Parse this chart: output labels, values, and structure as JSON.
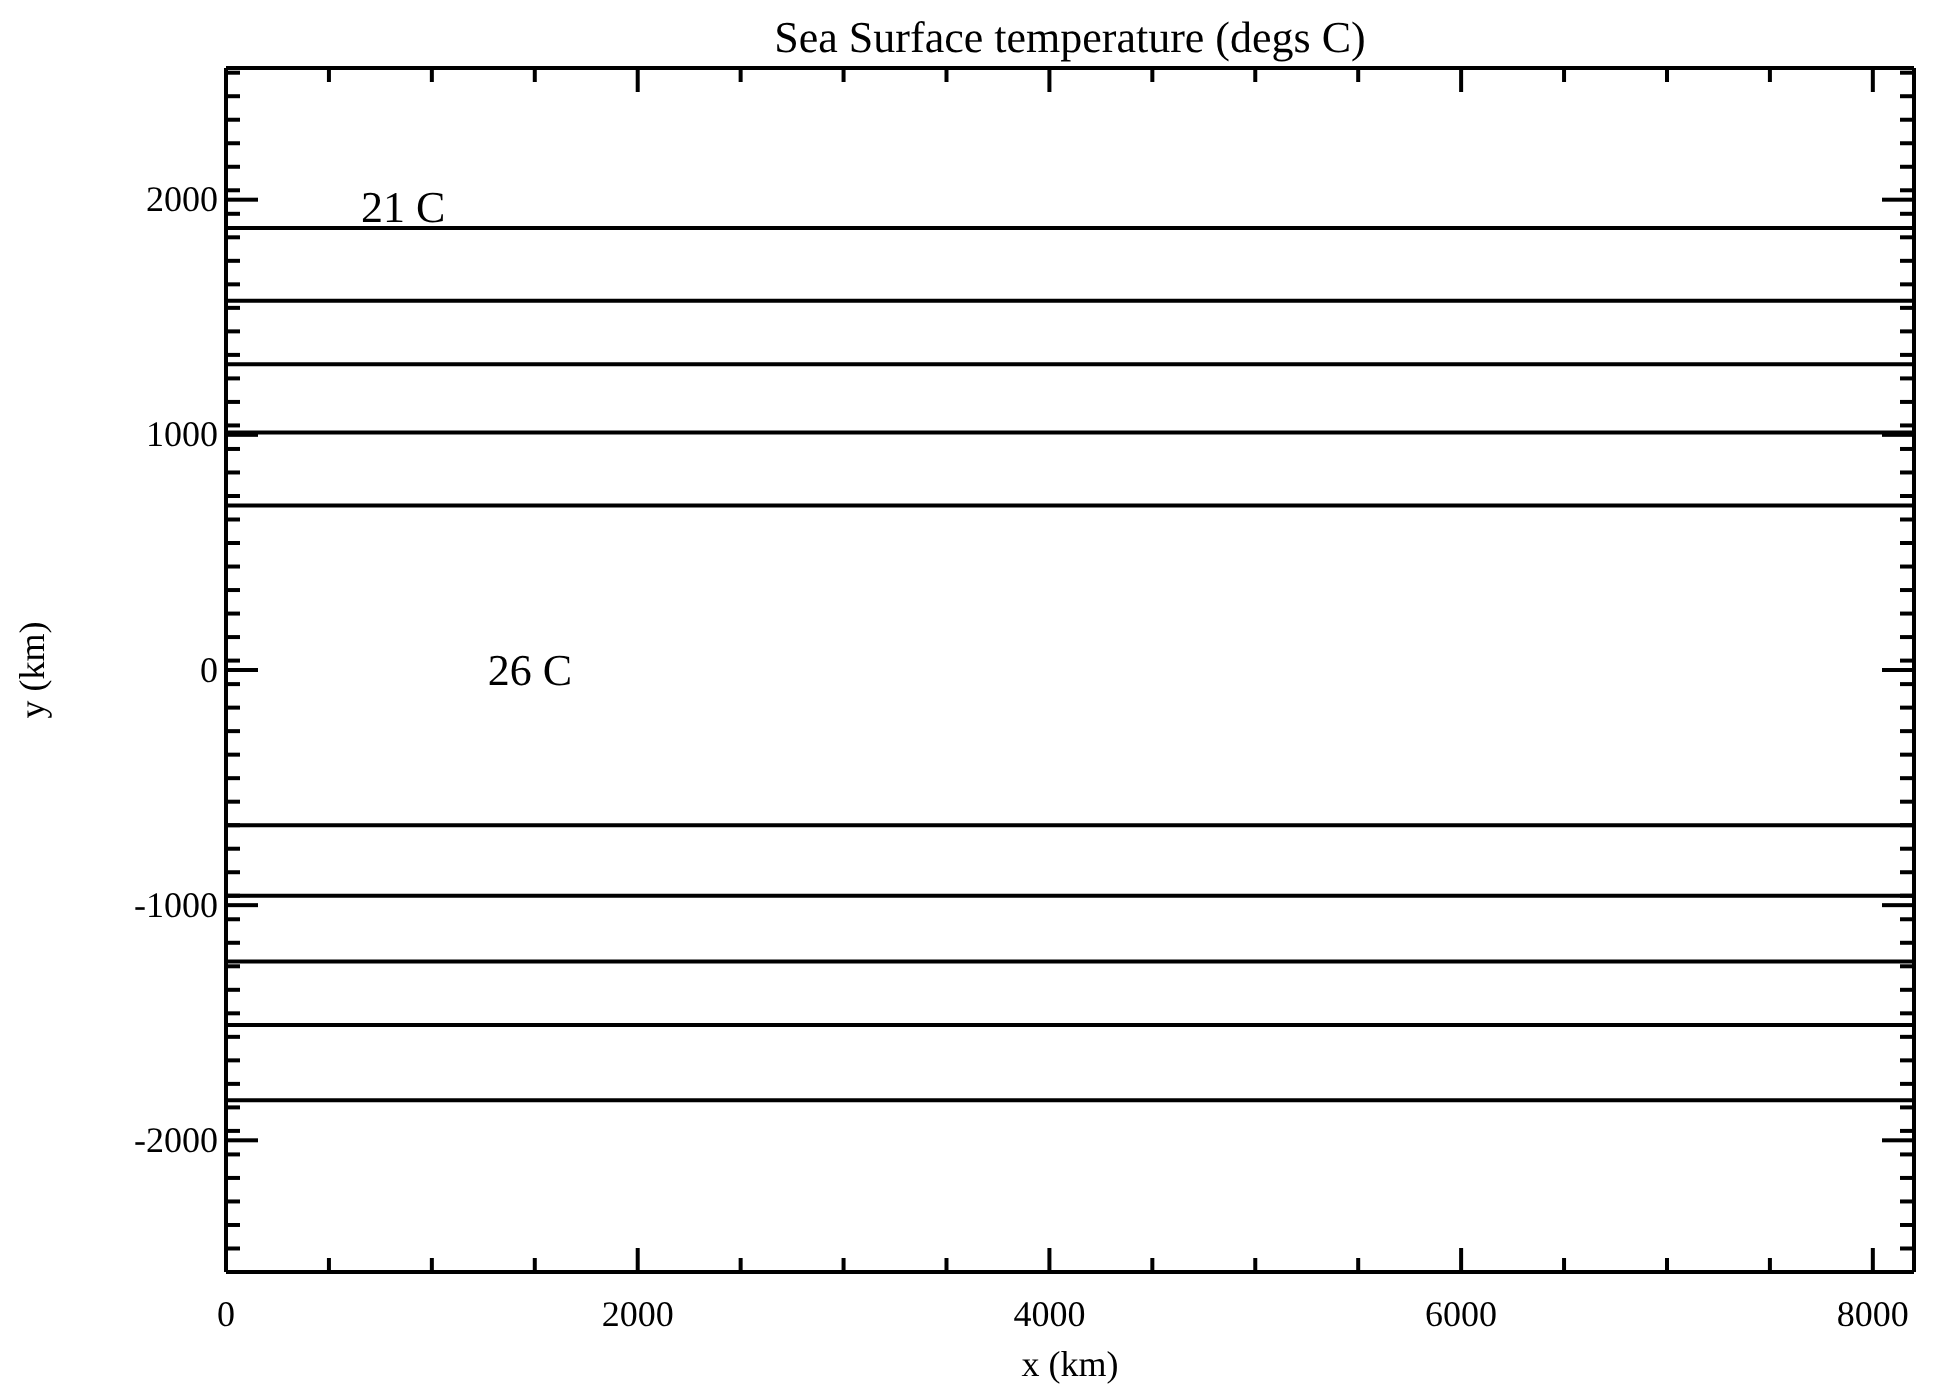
{
  "chart_data": {
    "type": "line",
    "title": "Sea Surface temperature (degs C)",
    "xlabel": "x (km)",
    "ylabel": "y (km)",
    "x": [
      0,
      8200
    ],
    "series": [
      {
        "color": "#000000",
        "values": [
          1880,
          1880
        ]
      },
      {
        "color": "#000000",
        "values": [
          1570,
          1570
        ]
      },
      {
        "color": "#000000",
        "values": [
          1300,
          1300
        ]
      },
      {
        "color": "#000000",
        "values": [
          1010,
          1010
        ]
      },
      {
        "color": "#000000",
        "values": [
          700,
          700
        ]
      },
      {
        "color": "#000000",
        "values": [
          -660,
          -660
        ]
      },
      {
        "color": "#000000",
        "values": [
          -960,
          -960
        ]
      },
      {
        "color": "#000000",
        "values": [
          -1240,
          -1240
        ]
      },
      {
        "color": "#000000",
        "values": [
          -1510,
          -1510
        ]
      },
      {
        "color": "#000000",
        "values": [
          -1830,
          -1830
        ]
      }
    ],
    "xlim": [
      0,
      8200
    ],
    "ylim": [
      -2560,
      2560
    ],
    "xticks": [
      0,
      {
        "value": 500,
        "label": null
      },
      {
        "value": 1000,
        "label": null
      },
      {
        "value": 1500,
        "label": null
      },
      2000,
      {
        "value": 2500,
        "label": null
      },
      {
        "value": 3000,
        "label": null
      },
      {
        "value": 3500,
        "label": null
      },
      4000,
      {
        "value": 4500,
        "label": null
      },
      {
        "value": 5000,
        "label": null
      },
      {
        "value": 5500,
        "label": null
      },
      6000,
      {
        "value": 6500,
        "label": null
      },
      {
        "value": 7000,
        "label": null
      },
      {
        "value": 7500,
        "label": null
      },
      8000
    ],
    "yticks": [
      -2000,
      -1000,
      0,
      1000,
      2000
    ],
    "annotations": [
      "21 C",
      "26 C"
    ],
    "marker": "none",
    "line_style": "solid",
    "grid": false
  }
}
